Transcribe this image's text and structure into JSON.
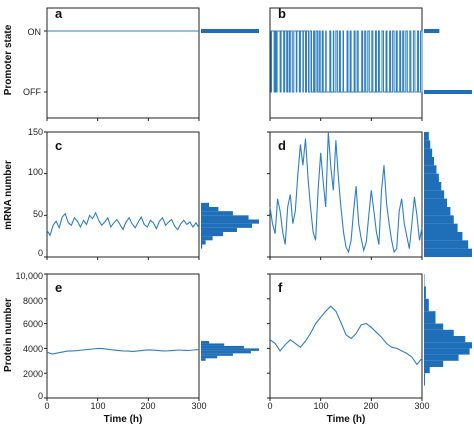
{
  "figure": {
    "colors": {
      "trace": "#2e7fc1",
      "hist": "#1f6fb8",
      "axis": "#222222"
    },
    "row_labels": [
      "Promoter state",
      "mRNA number",
      "Protein number"
    ],
    "time_label": "Time (h)",
    "promoter_ticks": [
      "ON",
      "OFF"
    ],
    "mrna_ticks": [
      "0",
      "50",
      "100",
      "150"
    ],
    "protein_ticks": [
      "0",
      "2000",
      "4000",
      "6000",
      "8000",
      "10,000"
    ],
    "time_ticks": [
      "0",
      "100",
      "200",
      "300"
    ]
  },
  "chart_data": [
    {
      "panel": "a",
      "type": "line",
      "ylabel": "Promoter state",
      "xlim": [
        0,
        300
      ],
      "categories_y": [
        "OFF",
        "ON"
      ],
      "series": [
        {
          "state": "ON",
          "x": [
            0,
            300
          ],
          "y": [
            1,
            1
          ]
        }
      ],
      "histogram": {
        "ON": 1.0,
        "OFF": 0.0
      }
    },
    {
      "panel": "b",
      "type": "line",
      "xlim": [
        0,
        300
      ],
      "categories_y": [
        "OFF",
        "ON"
      ],
      "switch_times": [
        0,
        2,
        3,
        8,
        10,
        12,
        14,
        20,
        22,
        27,
        29,
        33,
        35,
        38,
        40,
        44,
        47,
        52,
        53,
        58,
        60,
        65,
        66,
        70,
        72,
        76,
        79,
        82,
        86,
        88,
        91,
        94,
        97,
        99,
        103,
        105,
        110,
        111,
        118,
        120,
        125,
        126,
        130,
        133,
        137,
        139,
        144,
        145,
        152,
        154,
        158,
        160,
        166,
        168,
        172,
        174,
        181,
        183,
        187,
        189,
        193,
        196,
        201,
        203,
        208,
        210,
        214,
        216,
        221,
        224,
        229,
        231,
        236,
        238,
        242,
        245,
        249,
        251,
        256,
        258,
        262,
        264,
        268,
        271,
        276,
        278,
        283,
        286,
        291,
        293,
        297,
        300
      ],
      "initial_state": "ON",
      "histogram": {
        "ON": 0.28,
        "OFF": 0.72
      }
    },
    {
      "panel": "c",
      "type": "line",
      "ylabel": "mRNA number",
      "xlim": [
        0,
        300
      ],
      "ylim": [
        0,
        150
      ],
      "x": [
        0,
        6,
        12,
        18,
        24,
        30,
        36,
        42,
        48,
        54,
        60,
        66,
        72,
        78,
        84,
        90,
        96,
        102,
        108,
        114,
        120,
        126,
        132,
        138,
        144,
        150,
        156,
        162,
        168,
        174,
        180,
        186,
        192,
        198,
        204,
        210,
        216,
        222,
        228,
        234,
        240,
        246,
        252,
        258,
        264,
        270,
        276,
        282,
        288,
        294,
        300
      ],
      "y": [
        32,
        26,
        38,
        43,
        35,
        48,
        52,
        41,
        38,
        47,
        43,
        36,
        44,
        39,
        50,
        46,
        53,
        44,
        38,
        42,
        47,
        36,
        41,
        45,
        39,
        33,
        42,
        47,
        40,
        35,
        42,
        48,
        39,
        36,
        44,
        41,
        34,
        43,
        47,
        38,
        42,
        45,
        37,
        33,
        40,
        44,
        39,
        42,
        36,
        41,
        35
      ],
      "histogram": {
        "bins": [
          10,
          15,
          20,
          25,
          30,
          35,
          40,
          45,
          50,
          55,
          60,
          65
        ],
        "density": [
          0.02,
          0.08,
          0.2,
          0.38,
          0.62,
          0.88,
          1.0,
          0.82,
          0.55,
          0.3,
          0.14,
          0.04
        ]
      }
    },
    {
      "panel": "d",
      "type": "line",
      "xlim": [
        0,
        300
      ],
      "ylim": [
        0,
        150
      ],
      "x": [
        0,
        5,
        10,
        15,
        20,
        25,
        30,
        35,
        40,
        45,
        50,
        55,
        60,
        65,
        70,
        75,
        80,
        85,
        90,
        95,
        100,
        105,
        110,
        115,
        120,
        125,
        130,
        135,
        140,
        145,
        150,
        155,
        160,
        165,
        170,
        175,
        180,
        185,
        190,
        195,
        200,
        205,
        210,
        215,
        220,
        225,
        230,
        235,
        240,
        245,
        250,
        255,
        260,
        265,
        270,
        275,
        280,
        285,
        290,
        295,
        300
      ],
      "y": [
        60,
        40,
        28,
        70,
        55,
        30,
        15,
        60,
        75,
        40,
        55,
        100,
        135,
        110,
        142,
        95,
        60,
        30,
        20,
        80,
        125,
        90,
        60,
        150,
        108,
        80,
        140,
        95,
        60,
        30,
        12,
        6,
        20,
        55,
        85,
        40,
        22,
        8,
        18,
        50,
        80,
        55,
        30,
        15,
        80,
        110,
        65,
        40,
        20,
        6,
        10,
        55,
        70,
        40,
        25,
        10,
        40,
        72,
        50,
        20,
        35
      ],
      "histogram": {
        "bins": [
          0,
          10,
          20,
          30,
          40,
          50,
          60,
          70,
          80,
          90,
          100,
          110,
          120,
          130,
          140,
          150
        ],
        "density": [
          1.0,
          0.92,
          0.8,
          0.7,
          0.62,
          0.55,
          0.48,
          0.42,
          0.36,
          0.31,
          0.26,
          0.21,
          0.17,
          0.13,
          0.1,
          0.07
        ]
      }
    },
    {
      "panel": "e",
      "type": "line",
      "ylabel": "Protein number",
      "xlabel": "Time (h)",
      "xlim": [
        0,
        300
      ],
      "ylim": [
        0,
        10000
      ],
      "x": [
        0,
        10,
        20,
        30,
        40,
        50,
        60,
        70,
        80,
        90,
        100,
        110,
        120,
        130,
        140,
        150,
        160,
        170,
        180,
        190,
        200,
        210,
        220,
        230,
        240,
        250,
        260,
        270,
        280,
        290,
        300
      ],
      "y": [
        3700,
        3550,
        3620,
        3700,
        3780,
        3800,
        3820,
        3870,
        3900,
        3950,
        4000,
        3980,
        3930,
        3880,
        3840,
        3800,
        3780,
        3760,
        3800,
        3850,
        3880,
        3860,
        3820,
        3800,
        3810,
        3840,
        3870,
        3850,
        3830,
        3870,
        3900
      ],
      "histogram": {
        "bins": [
          3000,
          3200,
          3400,
          3600,
          3800,
          4000,
          4200,
          4400,
          4600
        ],
        "density": [
          0.08,
          0.28,
          0.55,
          0.86,
          1.0,
          0.74,
          0.4,
          0.14,
          0.04
        ]
      }
    },
    {
      "panel": "f",
      "type": "line",
      "xlabel": "Time (h)",
      "xlim": [
        0,
        300
      ],
      "ylim": [
        0,
        10000
      ],
      "x": [
        0,
        10,
        20,
        30,
        40,
        50,
        60,
        70,
        80,
        90,
        100,
        110,
        120,
        130,
        140,
        150,
        160,
        170,
        180,
        190,
        200,
        210,
        220,
        230,
        240,
        250,
        260,
        270,
        280,
        290,
        300
      ],
      "y": [
        4700,
        4400,
        3800,
        4300,
        4700,
        4400,
        4100,
        4600,
        5200,
        6000,
        6500,
        7000,
        7400,
        7000,
        6100,
        5100,
        4800,
        5200,
        5900,
        6000,
        5700,
        5300,
        4900,
        4400,
        4100,
        4000,
        3800,
        3600,
        3300,
        2700,
        3200
      ],
      "histogram": {
        "bins": [
          1000,
          2000,
          2500,
          3000,
          3500,
          4000,
          4500,
          5000,
          5500,
          6000,
          7000,
          8000,
          9000,
          10000
        ],
        "density": [
          0.02,
          0.12,
          0.4,
          0.72,
          0.95,
          1.0,
          0.86,
          0.62,
          0.4,
          0.24,
          0.1,
          0.04,
          0.01,
          0.0
        ]
      }
    }
  ]
}
